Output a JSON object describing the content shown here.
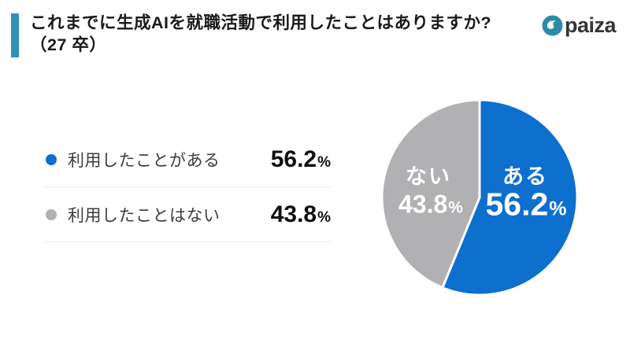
{
  "page": {
    "background": "#ffffff"
  },
  "header": {
    "title_line1": "これまでに生成AIを就職活動で利用したことはありますか?",
    "title_line2": "（27 卒）",
    "accent_color": "#2e93b8"
  },
  "logo": {
    "text": "paiza",
    "icon_color": "#2b8ca8",
    "text_color": "#353535"
  },
  "chart_data": {
    "type": "pie",
    "title": "これまでに生成AIを就職活動で利用したことはありますか?（27卒）",
    "unit": "%",
    "start_angle_deg": 0,
    "direction": "clockwise",
    "legend_position": "left",
    "slice_separator_color": "#ffffff",
    "slices": [
      {
        "label": "ある",
        "legend_label": "利用したことがある",
        "value": 56.2,
        "color": "#0d6fce",
        "text_color": "#ffffff"
      },
      {
        "label": "ない",
        "legend_label": "利用したことはない",
        "value": 43.8,
        "color": "#b1b1b3",
        "text_color": "#ffffff"
      }
    ]
  }
}
